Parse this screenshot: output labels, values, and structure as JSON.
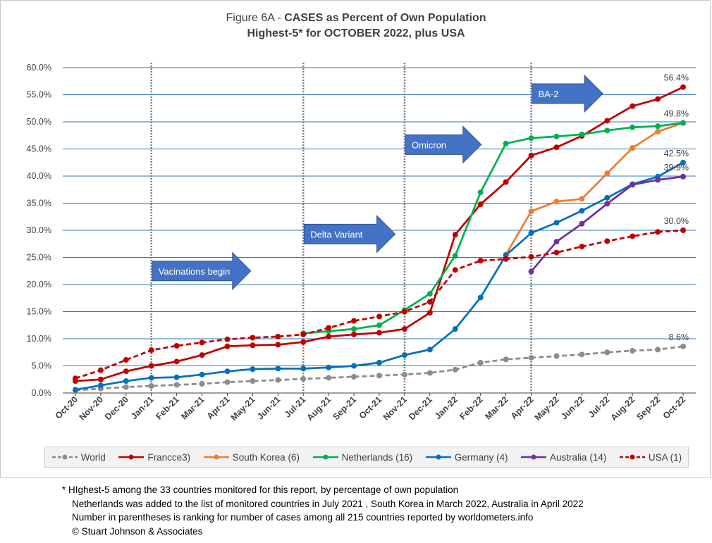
{
  "title_line1_prefix": "Figure 6A - ",
  "title_line1_bold": "CASES as Percent of Own Population",
  "title_line2": "Highest-5* for OCTOBER 2022, plus USA",
  "chart_data": {
    "type": "line",
    "categories": [
      "Oct-20",
      "Nov-20",
      "Dec-20",
      "Jan-21",
      "Feb-21",
      "Mar-21",
      "Apr-21",
      "May-21",
      "Jun-21",
      "Jul-21",
      "Aug-21",
      "Sep-21",
      "Oct-21",
      "Nov-21",
      "Dec-21",
      "Jan-22",
      "Feb-22",
      "Mar-22",
      "Apr-22",
      "May-22",
      "Jun-22",
      "Jul-22",
      "Aug-22",
      "Sep-22",
      "Oct-22"
    ],
    "ylim": [
      0,
      60
    ],
    "yticks": [
      "0.0%",
      "5.0%",
      "10.0%",
      "15.0%",
      "20.0%",
      "25.0%",
      "30.0%",
      "35.0%",
      "40.0%",
      "45.0%",
      "50.0%",
      "55.0%",
      "60.0%"
    ],
    "grid": true,
    "series": [
      {
        "name": "World",
        "color": "#8c8c8c",
        "dashed": true,
        "values": [
          0.5,
          0.8,
          1.1,
          1.3,
          1.5,
          1.7,
          2.0,
          2.2,
          2.4,
          2.6,
          2.8,
          3.0,
          3.2,
          3.4,
          3.7,
          4.3,
          5.6,
          6.2,
          6.5,
          6.8,
          7.1,
          7.5,
          7.8,
          8.0,
          8.6
        ]
      },
      {
        "name": "Francce3)",
        "color": "#c00000",
        "dashed": false,
        "values": [
          2.2,
          2.5,
          4.0,
          5.0,
          5.8,
          7.0,
          8.6,
          8.8,
          8.9,
          9.4,
          10.4,
          10.8,
          11.1,
          11.8,
          14.8,
          29.2,
          34.8,
          38.9,
          43.8,
          45.3,
          47.4,
          50.2,
          52.9,
          54.2,
          56.4
        ]
      },
      {
        "name": "South Korea (6)",
        "color": "#ed7d31",
        "dashed": false,
        "values": [
          null,
          null,
          null,
          null,
          null,
          null,
          null,
          null,
          null,
          null,
          null,
          null,
          null,
          null,
          null,
          null,
          null,
          25.5,
          33.5,
          35.3,
          35.8,
          40.5,
          45.2,
          48.2,
          49.8
        ]
      },
      {
        "name": "Netherlands (16)",
        "color": "#00b050",
        "dashed": false,
        "values": [
          null,
          null,
          null,
          null,
          null,
          null,
          null,
          null,
          null,
          11.0,
          11.4,
          11.8,
          12.5,
          15.3,
          18.3,
          25.3,
          37.0,
          46.0,
          47.0,
          47.3,
          47.7,
          48.4,
          49.0,
          49.2,
          49.8
        ]
      },
      {
        "name": "Germany (4)",
        "color": "#0070c0",
        "dashed": false,
        "values": [
          0.6,
          1.4,
          2.2,
          2.8,
          2.9,
          3.4,
          4.0,
          4.4,
          4.5,
          4.5,
          4.7,
          5.0,
          5.6,
          7.0,
          8.0,
          11.8,
          17.6,
          25.4,
          29.5,
          31.4,
          33.6,
          36.0,
          38.5,
          39.9,
          42.5
        ]
      },
      {
        "name": "Australia (14)",
        "color": "#7030a0",
        "dashed": false,
        "values": [
          null,
          null,
          null,
          null,
          null,
          null,
          null,
          null,
          null,
          null,
          null,
          null,
          null,
          null,
          null,
          null,
          null,
          null,
          22.4,
          27.9,
          31.2,
          34.9,
          38.4,
          39.3,
          39.9
        ]
      },
      {
        "name": "USA (1)",
        "color": "#c00000",
        "dashed": true,
        "values": [
          2.7,
          4.2,
          6.1,
          7.9,
          8.7,
          9.3,
          9.9,
          10.2,
          10.4,
          10.8,
          12.0,
          13.3,
          14.1,
          15.0,
          16.8,
          22.7,
          24.4,
          24.7,
          25.1,
          25.9,
          27.0,
          28.0,
          28.9,
          29.7,
          30.0
        ]
      }
    ],
    "end_labels": [
      {
        "text": "56.4%",
        "series": 1
      },
      {
        "text": "49.8%",
        "series": 3
      },
      {
        "text": "42.5%",
        "series": 4
      },
      {
        "text": "39.9%",
        "series": 5
      },
      {
        "text": "30.0%",
        "series": 6
      },
      {
        "text": "8.6%",
        "series": 0
      }
    ],
    "event_lines": [
      "Jan-21",
      "Jul-21",
      "Nov-21",
      "Apr-22"
    ],
    "annotations": [
      {
        "text": "Vacinations begin",
        "at": "Jan-21",
        "value": 22.5,
        "span": 3.9
      },
      {
        "text": "Delta Variant",
        "at": "Jul-21",
        "value": 29.3,
        "span": 3.6
      },
      {
        "text": "Omicron",
        "at": "Nov-21",
        "value": 45.8,
        "span": 3.0
      },
      {
        "text": "BA-2",
        "at": "Apr-22",
        "value": 55.2,
        "span": 2.8
      }
    ],
    "arrow_color": "#4472c4"
  },
  "footnotes": [
    "* HIghest-5 among the 33 countries monitored for this report, by percentage of own population",
    "Netherlands was added to the list of monitored countries in July 2021 , South Korea in March 2022, Australia in April 2022",
    "Number in parentheses is ranking for number of cases among all 215 countries reported by worldometers.info",
    "© Stuart Johnson & Associates"
  ]
}
